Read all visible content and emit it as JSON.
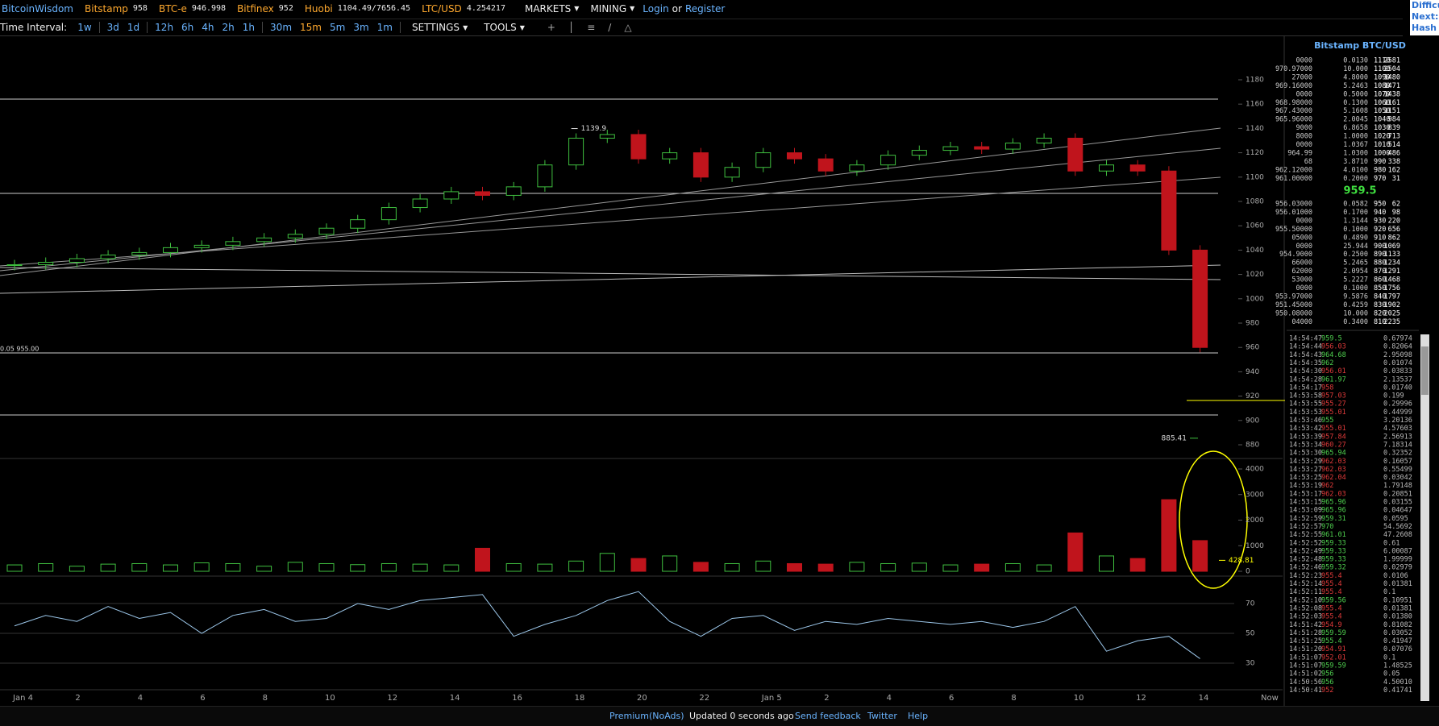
{
  "nav": {
    "brand": "BitcoinWisdom",
    "tickers": [
      {
        "name": "Bitstamp",
        "price": "958"
      },
      {
        "name": "BTC-e",
        "price": "946.998"
      },
      {
        "name": "Bitfinex",
        "price": "952"
      },
      {
        "name": "Huobi",
        "price": "1104.49/7656.45"
      },
      {
        "name": "LTC/USD",
        "price": "4.254217"
      }
    ],
    "menus": [
      "MARKETS",
      "MINING"
    ],
    "login": "Login",
    "or": "or",
    "register": "Register"
  },
  "toolbar": {
    "label": "Time Interval:",
    "intervals": [
      [
        "1w"
      ],
      [
        "3d",
        "1d"
      ],
      [
        "12h",
        "6h",
        "4h",
        "2h",
        "1h"
      ],
      [
        "30m",
        "15m",
        "5m",
        "3m",
        "1m"
      ]
    ],
    "selected": "15m",
    "settings": "SETTINGS",
    "tools": "TOOLS"
  },
  "side_clip": [
    "Difficu",
    "Next:",
    "Hash R"
  ],
  "chart": {
    "price_ticks": [
      1180,
      1160,
      1140,
      1120,
      1100,
      1080,
      1060,
      1040,
      1020,
      1000,
      980,
      960,
      940,
      920,
      900,
      880
    ],
    "volume_ticks": [
      4000,
      3000,
      2000,
      1000,
      0
    ],
    "rsi_ticks": [
      70,
      50,
      30
    ],
    "time_labels": [
      "Jan 4",
      "2",
      "4",
      "6",
      "8",
      "10",
      "12",
      "14",
      "16",
      "18",
      "20",
      "22",
      "Jan 5",
      "2",
      "4",
      "6",
      "8",
      "10",
      "12",
      "14",
      "Now"
    ],
    "hourly_close": [
      1028,
      1030,
      1033,
      1036,
      1038,
      1042,
      1044,
      1047,
      1050,
      1053,
      1058,
      1065,
      1075,
      1082,
      1088,
      1085,
      1092,
      1110,
      1132,
      1135,
      1115,
      1120,
      1100,
      1108,
      1120,
      1115,
      1105,
      1110,
      1118,
      1122,
      1125,
      1123,
      1128,
      1132,
      1105,
      1110,
      1105,
      1040,
      960
    ],
    "hourly_volume": [
      250,
      300,
      200,
      280,
      300,
      250,
      330,
      300,
      200,
      350,
      300,
      260,
      300,
      280,
      250,
      900,
      300,
      280,
      400,
      700,
      500,
      600,
      350,
      300,
      400,
      300,
      280,
      350,
      300,
      320,
      250,
      280,
      300,
      250,
      1500,
      600,
      500,
      2800,
      1200
    ],
    "rsi": [
      55,
      62,
      58,
      68,
      60,
      64,
      50,
      62,
      66,
      58,
      60,
      70,
      66,
      72,
      74,
      76,
      48,
      56,
      62,
      72,
      78,
      58,
      48,
      60,
      62,
      52,
      58,
      56,
      60,
      58,
      56,
      58,
      54,
      58,
      68,
      38,
      45,
      48,
      33
    ],
    "up_color": "#3fbf3f",
    "down_color": "#c0141c",
    "high_label": 1139.9,
    "low_label": 885.41,
    "order_label": "0.05 955.00",
    "volume_label": 428.81
  },
  "order_book": {
    "title": "Bitstamp BTC/USD",
    "asks": [
      [
        "0000",
        "0.0130",
        "1110",
        "2581"
      ],
      [
        "970.97000",
        "10.000",
        "1100",
        "2504"
      ],
      [
        "27000",
        "4.8000",
        "1090",
        "1480"
      ],
      [
        "969.16000",
        "5.2463",
        "1080",
        "1471"
      ],
      [
        "0000",
        "0.5000",
        "1070",
        "1438"
      ],
      [
        "968.98000",
        "0.1300",
        "1060",
        "1161"
      ],
      [
        "967.43000",
        "5.1608",
        "1050",
        "1151"
      ],
      [
        "965.96000",
        "2.0045",
        "1040",
        "984"
      ],
      [
        "9000",
        "6.8658",
        "1030",
        "839"
      ],
      [
        "8000",
        "1.0000",
        "1020",
        "713"
      ],
      [
        "0000",
        "1.0367",
        "1010",
        "514"
      ],
      [
        "964.99",
        "1.0300",
        "1000",
        "486"
      ],
      [
        "68",
        "3.8710",
        "990",
        "338"
      ],
      [
        "962.12000",
        "4.0100",
        "980",
        "162"
      ],
      [
        "961.00000",
        "0.2000",
        "970",
        "31"
      ]
    ],
    "last": "959.5",
    "bids": [
      [
        "956.03000",
        "0.0582",
        "950",
        "62"
      ],
      [
        "956.01000",
        "0.1700",
        "940",
        "98"
      ],
      [
        "0000",
        "1.3144",
        "930",
        "220"
      ],
      [
        "955.50000",
        "0.1000",
        "920",
        "656"
      ],
      [
        "05000",
        "0.4890",
        "910",
        "862"
      ],
      [
        "0000",
        "25.944",
        "900",
        "1069"
      ],
      [
        "954.9000",
        "0.2500",
        "890",
        "1133"
      ],
      [
        "66000",
        "5.2465",
        "880",
        "1234"
      ],
      [
        "62000",
        "2.0954",
        "870",
        "1291"
      ],
      [
        "53000",
        "5.2227",
        "860",
        "1468"
      ],
      [
        "0000",
        "0.1000",
        "850",
        "1756"
      ],
      [
        "953.97000",
        "9.5876",
        "840",
        "1797"
      ],
      [
        "951.45000",
        "0.4259",
        "830",
        "1902"
      ],
      [
        "950.08000",
        "10.000",
        "820",
        "2025"
      ],
      [
        "04000",
        "0.3400",
        "810",
        "2235"
      ]
    ]
  },
  "trades": {
    "buy_color": "#4fd14f",
    "sell_color": "#e03a3a",
    "rows": [
      [
        "14:54:47",
        "959.5",
        "0.67974",
        "buy"
      ],
      [
        "14:54:44",
        "956.03",
        "0.82064",
        "sell"
      ],
      [
        "14:54:43",
        "964.68",
        "2.95098",
        "buy"
      ],
      [
        "14:54:35",
        "962",
        "0.01074",
        "buy"
      ],
      [
        "14:54:30",
        "956.01",
        "0.03833",
        "sell"
      ],
      [
        "14:54:28",
        "961.97",
        "2.13537",
        "buy"
      ],
      [
        "14:54:17",
        "958",
        "0.01740",
        "sell"
      ],
      [
        "14:53:58",
        "957.03",
        "0.199",
        "sell"
      ],
      [
        "14:53:55",
        "955.27",
        "0.29996",
        "sell"
      ],
      [
        "14:53:53",
        "955.01",
        "0.44999",
        "sell"
      ],
      [
        "14:53:46",
        "955",
        "3.20136",
        "buy"
      ],
      [
        "14:53:42",
        "955.01",
        "4.57603",
        "sell"
      ],
      [
        "14:53:39",
        "957.84",
        "2.56913",
        "sell"
      ],
      [
        "14:53:34",
        "960.27",
        "7.18314",
        "sell"
      ],
      [
        "14:53:30",
        "965.94",
        "0.32352",
        "buy"
      ],
      [
        "14:53:29",
        "962.03",
        "0.16057",
        "sell"
      ],
      [
        "14:53:27",
        "962.03",
        "0.55499",
        "sell"
      ],
      [
        "14:53:25",
        "962.04",
        "0.03042",
        "sell"
      ],
      [
        "14:53:19",
        "962",
        "1.79148",
        "sell"
      ],
      [
        "14:53:17",
        "962.03",
        "0.20851",
        "sell"
      ],
      [
        "14:53:15",
        "965.96",
        "0.03155",
        "buy"
      ],
      [
        "14:53:09",
        "965.96",
        "0.04647",
        "buy"
      ],
      [
        "14:52:59",
        "959.31",
        "0.0595",
        "buy"
      ],
      [
        "14:52:57",
        "970",
        "54.5692",
        "buy"
      ],
      [
        "14:52:55",
        "961.01",
        "47.2608",
        "buy"
      ],
      [
        "14:52:52",
        "959.33",
        "0.61",
        "buy"
      ],
      [
        "14:52:49",
        "959.33",
        "6.00087",
        "buy"
      ],
      [
        "14:52:48",
        "959.33",
        "1.99999",
        "buy"
      ],
      [
        "14:52:46",
        "959.32",
        "0.02979",
        "buy"
      ],
      [
        "14:52:23",
        "955.4",
        "0.0106",
        "sell"
      ],
      [
        "14:52:14",
        "955.4",
        "0.01381",
        "sell"
      ],
      [
        "14:52:11",
        "955.4",
        "0.1",
        "sell"
      ],
      [
        "14:52:10",
        "959.56",
        "0.10951",
        "buy"
      ],
      [
        "14:52:08",
        "955.4",
        "0.01381",
        "sell"
      ],
      [
        "14:52:03",
        "955.4",
        "0.01380",
        "sell"
      ],
      [
        "14:51:42",
        "954.9",
        "0.81082",
        "sell"
      ],
      [
        "14:51:28",
        "959.59",
        "0.03052",
        "buy"
      ],
      [
        "14:51:25",
        "955.4",
        "0.41947",
        "buy"
      ],
      [
        "14:51:20",
        "954.91",
        "0.07076",
        "sell"
      ],
      [
        "14:51:07",
        "952.01",
        "0.1",
        "sell"
      ],
      [
        "14:51:07",
        "959.59",
        "1.48525",
        "buy"
      ],
      [
        "14:51:02",
        "956",
        "0.05",
        "buy"
      ],
      [
        "14:50:56",
        "956",
        "4.50010",
        "buy"
      ],
      [
        "14:50:41",
        "952",
        "0.41741",
        "sell"
      ]
    ]
  },
  "footer": [
    "Premium(NoAds)",
    "Updated 0 seconds ago",
    "Send feedback",
    "Twitter",
    "Help"
  ]
}
